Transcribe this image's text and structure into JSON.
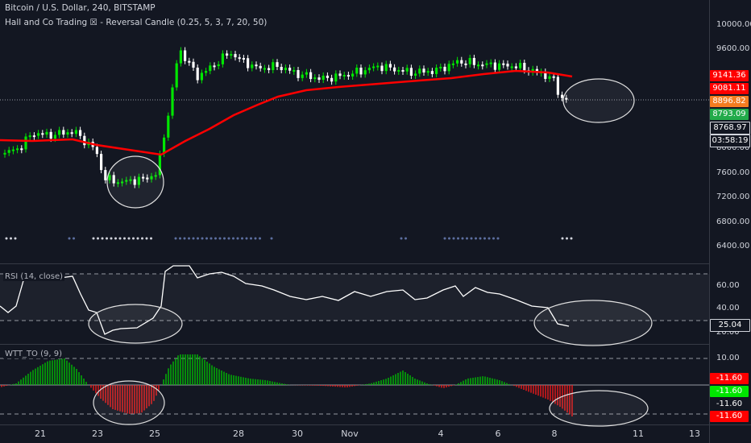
{
  "header": {
    "symbol_line": "Bitcoin / U.S. Dollar, 240, BITSTAMP",
    "indicator_line": "Hall and Co Trading ☒ - Reversal Candle (0.25, 5, 3, 7, 20, 50)"
  },
  "panes": {
    "rsi_label": "RSI (14, close)",
    "wtt_label": "WTT_TO (9, 9)"
  },
  "price_axis": {
    "ticks": [
      "10000.00",
      "9600.00",
      "8000.00",
      "7600.00",
      "7200.00",
      "6800.00",
      "6400.00"
    ],
    "badges": [
      {
        "text": "9141.36",
        "bg": "#ff0000",
        "fg": "#ffffff"
      },
      {
        "text": "9081.11",
        "bg": "#ff0000",
        "fg": "#ffffff"
      },
      {
        "text": "8896.82",
        "bg": "#f57c20",
        "fg": "#ffffff"
      },
      {
        "text": "8793.09",
        "bg": "#22ab4a",
        "fg": "#ffffff"
      },
      {
        "text": "8768.97",
        "bg": "#131722",
        "fg": "#ffffff"
      },
      {
        "text": "03:58:19",
        "bg": "#131722",
        "fg": "#ffffff"
      }
    ]
  },
  "rsi_axis": {
    "ticks": [
      "60.00",
      "40.00",
      "20.00"
    ],
    "badge": "25.04"
  },
  "wtt_axis": {
    "ticks": [
      "10.00"
    ],
    "badges": [
      {
        "text": "-11.60",
        "bg": "#ff0000",
        "fg": "#ffffff"
      },
      {
        "text": "-11.60",
        "bg": "#00e600",
        "fg": "#ffffff"
      },
      {
        "text": "-11.60",
        "bg": "#131722",
        "fg": "#ffffff"
      },
      {
        "text": "-11.60",
        "bg": "#ff0000",
        "fg": "#ffffff"
      }
    ]
  },
  "time_axis": [
    "21",
    "23",
    "25",
    "28",
    "30",
    "Nov",
    "4",
    "6",
    "8",
    "11",
    "13"
  ],
  "colors": {
    "background": "#131722",
    "up": "#00e600",
    "down": "#ffffff",
    "ma": "#ff0000",
    "rsi": "#ffffff",
    "osc_pos": "#00c800",
    "osc_neg": "#ff1a1a"
  }
}
